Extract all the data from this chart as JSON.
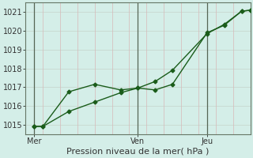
{
  "xlabel": "Pression niveau de la mer( hPa )",
  "ylim": [
    1014.5,
    1021.5
  ],
  "xlim": [
    0,
    13
  ],
  "yticks": [
    1015,
    1016,
    1017,
    1018,
    1019,
    1020,
    1021
  ],
  "xtick_positions": [
    0.5,
    6.5,
    10.5
  ],
  "xtick_labels": [
    "Mer",
    "Ven",
    "Jeu"
  ],
  "bg_color": "#d4eee8",
  "grid_color_h": "#c8d8d0",
  "grid_color_v": "#d8b8b8",
  "line_color": "#1a5c1a",
  "vline_color": "#556655",
  "vlines": [
    0.5,
    6.5,
    10.5
  ],
  "line1_x": [
    0.5,
    1.0,
    2.5,
    4.0,
    5.5,
    6.5,
    7.5,
    8.5,
    10.5,
    11.5,
    12.5,
    13.0
  ],
  "line1_y": [
    1014.9,
    1014.9,
    1015.7,
    1016.2,
    1016.7,
    1016.95,
    1017.3,
    1017.9,
    1019.85,
    1020.35,
    1021.05,
    1021.1
  ],
  "line2_x": [
    0.5,
    1.0,
    2.5,
    4.0,
    5.5,
    6.5,
    7.5,
    8.5,
    10.5,
    11.5,
    12.5,
    13.0
  ],
  "line2_y": [
    1014.9,
    1014.9,
    1016.75,
    1017.15,
    1016.85,
    1016.95,
    1016.85,
    1017.15,
    1019.9,
    1020.3,
    1021.05,
    1021.1
  ],
  "marker": "D",
  "markersize": 2.5,
  "linewidth": 1.0,
  "figsize": [
    3.2,
    2.0
  ],
  "dpi": 100,
  "ylabel_fontsize": 7,
  "xlabel_fontsize": 8,
  "tick_fontsize": 7
}
